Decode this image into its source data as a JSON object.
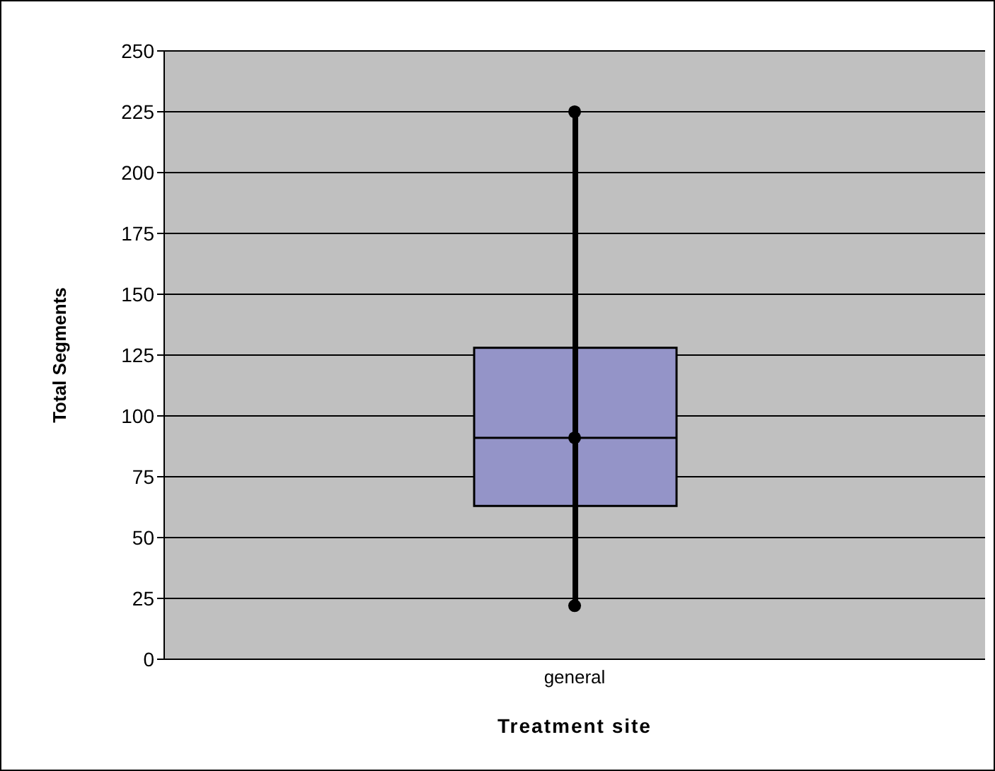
{
  "chart_data": {
    "type": "box",
    "xlabel": "Treatment site",
    "ylabel": "Total Segments",
    "categories": [
      "general"
    ],
    "boxes": [
      {
        "low": 22,
        "q1": 63,
        "median": 91,
        "q3": 128,
        "high": 225
      }
    ],
    "color": "#9494c8",
    "series": [
      {
        "type": "scatter",
        "x": [
          "general",
          "general",
          "general"
        ],
        "values": [
          225,
          91,
          22
        ],
        "color": "#000000"
      }
    ],
    "ylim": [
      0,
      250
    ],
    "yticks": [
      0,
      25,
      50,
      75,
      100,
      125,
      150,
      175,
      200,
      225,
      250
    ],
    "grid": "y",
    "marker": "circle"
  }
}
